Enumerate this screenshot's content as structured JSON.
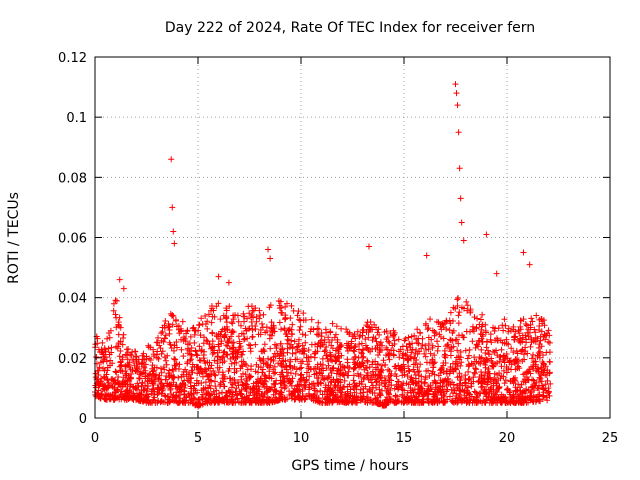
{
  "chart_data": {
    "type": "scatter",
    "title": "Day 222 of 2024, Rate Of TEC Index for receiver fern",
    "xlabel": "GPS time / hours",
    "ylabel": "ROTI / TECUs",
    "xlim": [
      0,
      25
    ],
    "ylim": [
      0,
      0.12
    ],
    "x_ticks": [
      "0",
      "5",
      "10",
      "15",
      "20",
      "25"
    ],
    "y_ticks": [
      "0",
      "0.02",
      "0.04",
      "0.06",
      "0.08",
      "0.1",
      "0.12"
    ],
    "grid": true,
    "marker": "plus",
    "color": "#ff0000",
    "series": [
      {
        "x": [
          3.7,
          3.75,
          3.8,
          3.85,
          8.4,
          8.5,
          13.3,
          16.1,
          17.5,
          17.55,
          17.6,
          17.65,
          17.7,
          17.75,
          17.8,
          17.9,
          19.0,
          19.5,
          20.8,
          21.1,
          1.2,
          1.4,
          6.0,
          6.5
        ],
        "y": [
          0.086,
          0.07,
          0.062,
          0.058,
          0.056,
          0.053,
          0.057,
          0.054,
          0.111,
          0.108,
          0.104,
          0.095,
          0.083,
          0.073,
          0.065,
          0.059,
          0.061,
          0.048,
          0.055,
          0.051,
          0.046,
          0.043,
          0.047,
          0.045
        ]
      }
    ],
    "density_envelope": {
      "x": [
        0,
        0.5,
        1.0,
        1.5,
        2.0,
        2.5,
        3.0,
        3.5,
        4.0,
        4.5,
        5.0,
        5.5,
        6.0,
        6.5,
        7.0,
        7.5,
        8.0,
        8.5,
        9.0,
        9.5,
        10.0,
        10.5,
        11.0,
        11.5,
        12.0,
        12.5,
        13.0,
        13.5,
        14.0,
        14.5,
        15.0,
        15.5,
        16.0,
        16.5,
        17.0,
        17.5,
        18.0,
        18.5,
        19.0,
        19.5,
        20.0,
        20.5,
        21.0,
        21.5,
        22.1
      ],
      "high": [
        0.028,
        0.024,
        0.042,
        0.024,
        0.022,
        0.024,
        0.026,
        0.034,
        0.036,
        0.03,
        0.032,
        0.036,
        0.04,
        0.038,
        0.034,
        0.038,
        0.036,
        0.038,
        0.04,
        0.038,
        0.036,
        0.034,
        0.032,
        0.032,
        0.03,
        0.03,
        0.032,
        0.032,
        0.03,
        0.03,
        0.026,
        0.028,
        0.034,
        0.032,
        0.032,
        0.04,
        0.04,
        0.034,
        0.036,
        0.03,
        0.034,
        0.032,
        0.034,
        0.036,
        0.03
      ],
      "low": [
        0.007,
        0.006,
        0.006,
        0.006,
        0.006,
        0.005,
        0.005,
        0.005,
        0.005,
        0.005,
        0.004,
        0.005,
        0.005,
        0.005,
        0.005,
        0.005,
        0.005,
        0.005,
        0.006,
        0.006,
        0.006,
        0.006,
        0.005,
        0.005,
        0.005,
        0.005,
        0.005,
        0.005,
        0.004,
        0.005,
        0.005,
        0.005,
        0.005,
        0.005,
        0.005,
        0.005,
        0.005,
        0.005,
        0.005,
        0.005,
        0.005,
        0.005,
        0.005,
        0.005,
        0.006
      ]
    }
  }
}
